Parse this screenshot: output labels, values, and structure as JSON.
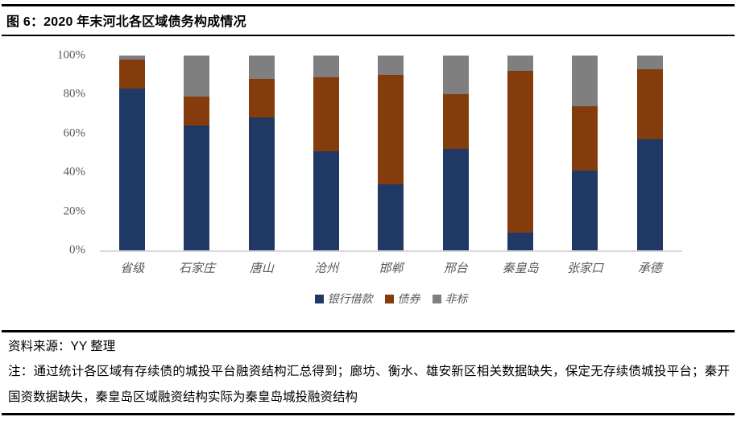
{
  "figure": {
    "title": "图 6：2020 年末河北各区域债务构成情况"
  },
  "chart_data": {
    "type": "bar",
    "subtype": "stacked-100",
    "title": "2020 年末河北各区域债务构成情况",
    "xlabel": "",
    "ylabel": "",
    "ylim": [
      0,
      100
    ],
    "unit": "%",
    "grid": false,
    "legend_position": "bottom",
    "y_ticks": [
      "100%",
      "80%",
      "60%",
      "40%",
      "20%",
      "0%"
    ],
    "categories": [
      "省级",
      "石家庄",
      "唐山",
      "沧州",
      "邯郸",
      "邢台",
      "秦皇岛",
      "张家口",
      "承德"
    ],
    "series": [
      {
        "id": "bank-loans",
        "name": "银行借款",
        "color": "#1F3864",
        "values": [
          83,
          64,
          68,
          51,
          34,
          52,
          9,
          41,
          57
        ]
      },
      {
        "id": "bonds",
        "name": "债券",
        "color": "#843C0C",
        "values": [
          15,
          15,
          20,
          38,
          56,
          28,
          83,
          33,
          36
        ]
      },
      {
        "id": "non-standard",
        "name": "非标",
        "color": "#7F7F7F",
        "values": [
          2,
          21,
          12,
          11,
          10,
          20,
          8,
          26,
          7
        ]
      }
    ],
    "axis_line_color": "#D9D9D9",
    "tick_label_color": "#595959"
  },
  "footer": {
    "source": "资料来源：YY 整理",
    "note": "注：通过统计各区域有存续债的城投平台融资结构汇总得到；廊坊、衡水、雄安新区相关数据缺失，保定无存续债城投平台；秦开国资数据缺失，秦皇岛区域融资结构实际为秦皇岛城投融资结构"
  }
}
